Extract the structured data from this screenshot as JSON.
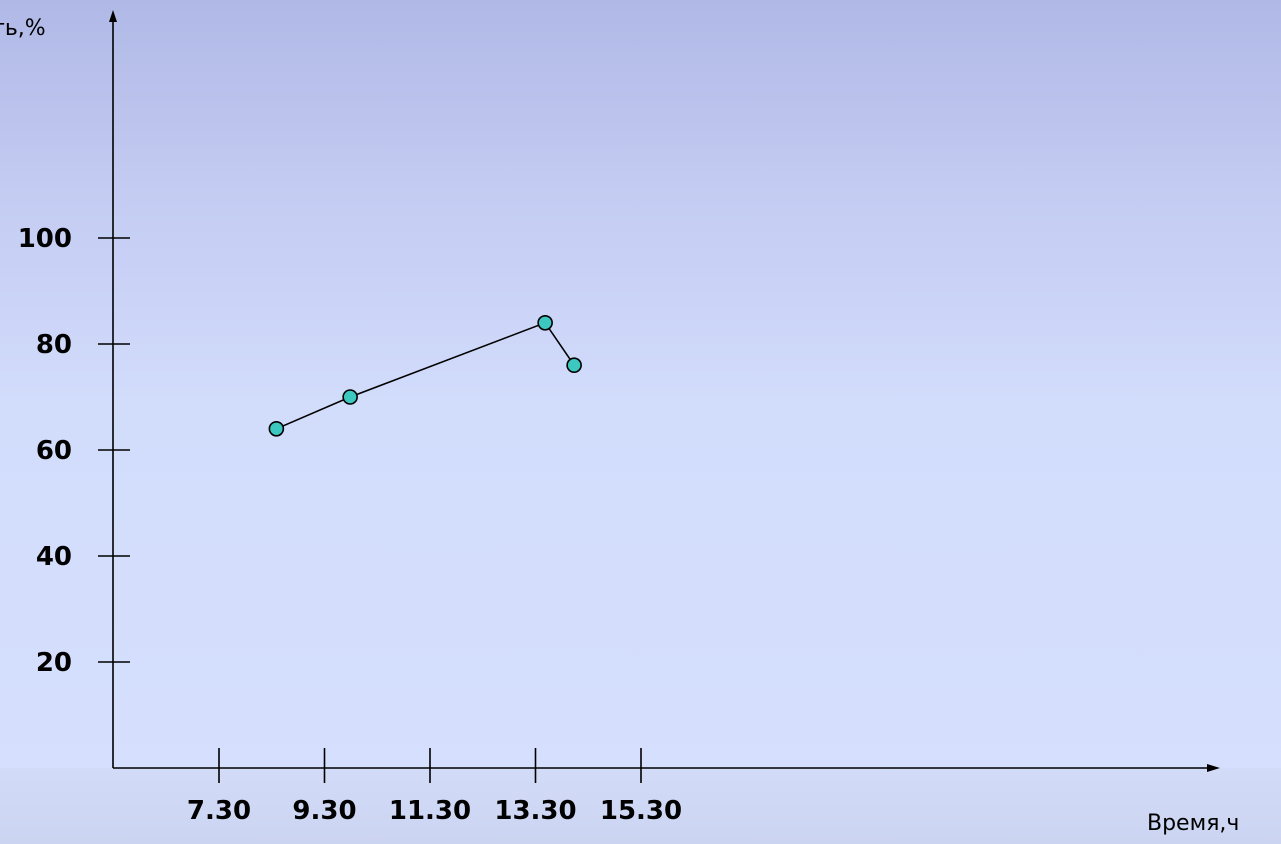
{
  "chart_data": {
    "type": "line",
    "title": "",
    "xlabel": "Время,ч",
    "ylabel": "ть,%",
    "x_ticks": [
      "7.30",
      "9.30",
      "11.30",
      "13.30",
      "15.30"
    ],
    "y_ticks": [
      20,
      40,
      60,
      80,
      100
    ],
    "xlim": [
      5.5,
      15.5
    ],
    "ylim": [
      0,
      100
    ],
    "grid": false,
    "series": [
      {
        "x": [
          8.6,
          10.0,
          13.7,
          14.25
        ],
        "y": [
          64,
          70,
          84,
          76
        ]
      }
    ],
    "colors": {
      "marker_fill": "#3cc8c0",
      "line": "#000000",
      "axis": "#000000"
    }
  }
}
